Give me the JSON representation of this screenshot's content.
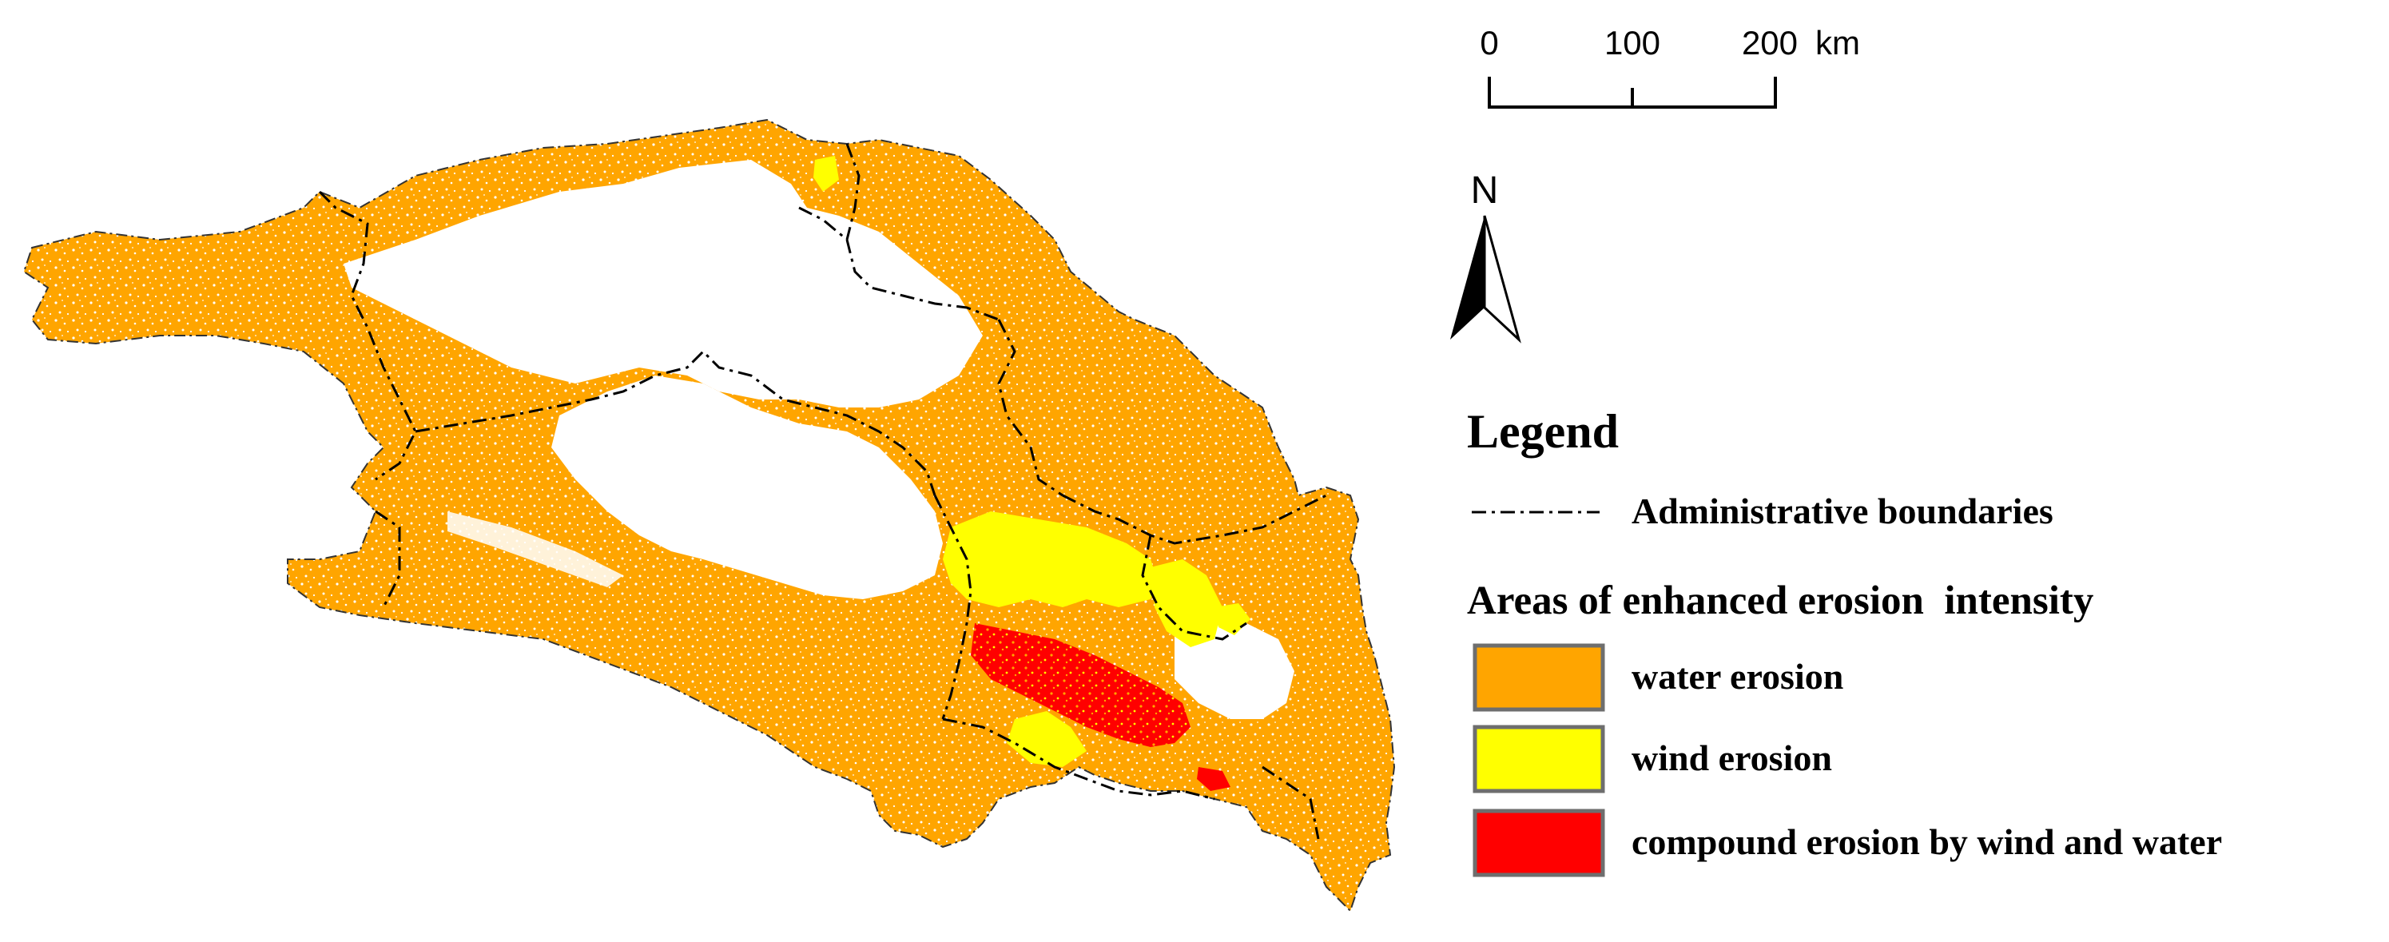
{
  "scale_bar": {
    "tick_labels": [
      "0",
      "100",
      "200"
    ],
    "unit": "km"
  },
  "north_arrow": {
    "label": "N",
    "icon": "north-arrow-icon"
  },
  "legend": {
    "title": "Legend",
    "boundary_label": "Administrative boundaries",
    "section_title": "Areas of enhanced erosion  intensity",
    "items": [
      {
        "label": "water erosion",
        "color": "#FFA500"
      },
      {
        "label": "wind erosion",
        "color": "#FFFF00"
      },
      {
        "label": "compound erosion by wind and water",
        "color": "#FF0000"
      }
    ]
  },
  "colors": {
    "water": "#FFA500",
    "wind": "#FFFF00",
    "compound": "#FF0000",
    "boundary": "#000000",
    "background": "#FFFFFF",
    "swatch_border": "#6E6E6E"
  }
}
